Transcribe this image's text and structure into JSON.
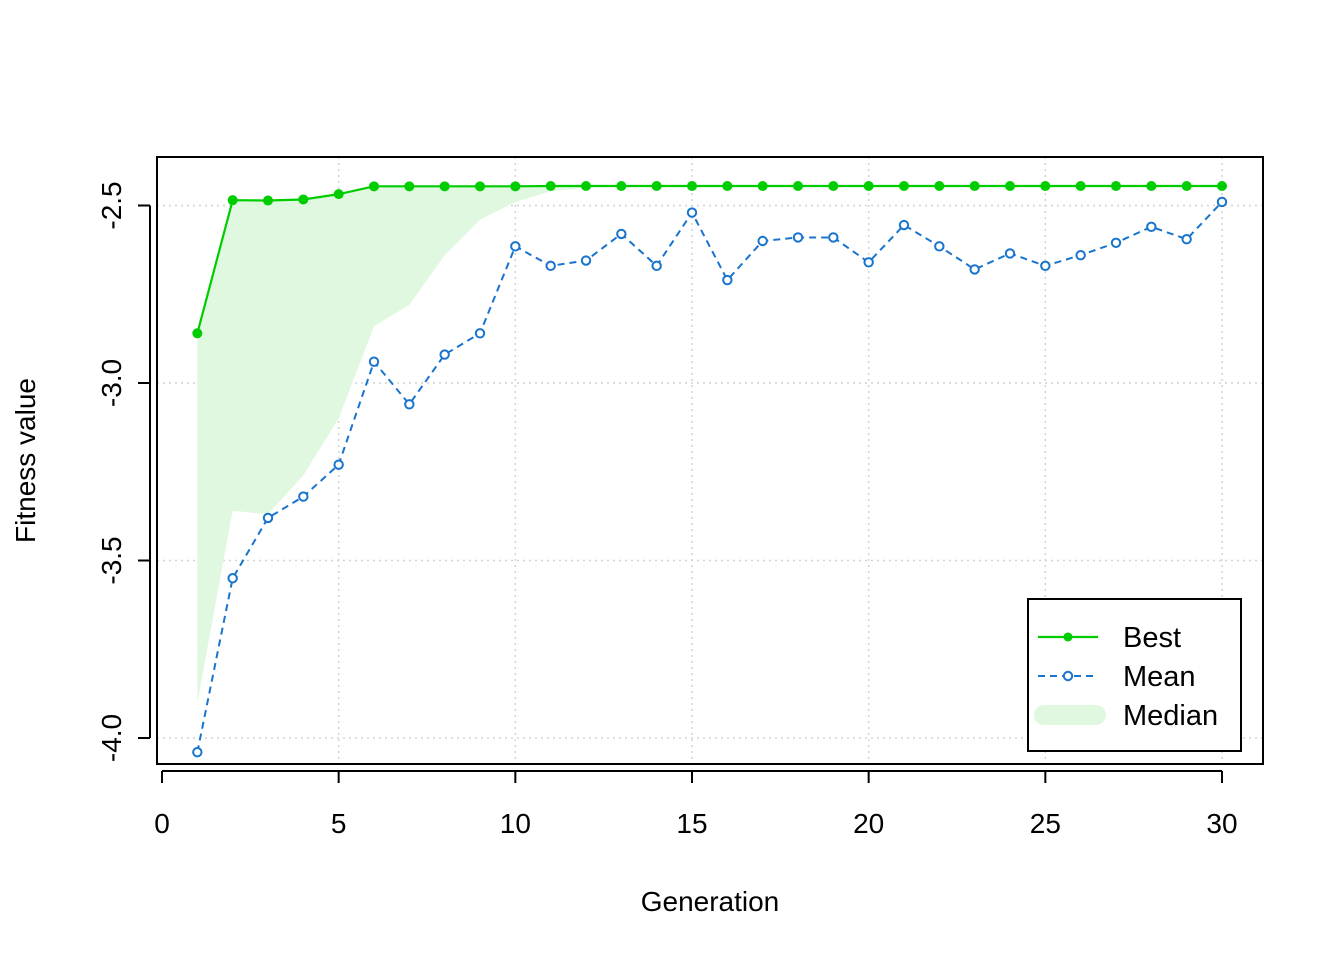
{
  "chart_data": {
    "type": "line",
    "title": "",
    "xlabel": "Generation",
    "ylabel": "Fitness value",
    "xlim": [
      0,
      30
    ],
    "ylim": [
      -4.05,
      -2.35
    ],
    "x_ticks": [
      0,
      5,
      10,
      15,
      20,
      25,
      30
    ],
    "y_ticks": [
      -4.0,
      -3.5,
      -3.0,
      -2.5
    ],
    "x_tick_labels": [
      "0",
      "5",
      "10",
      "15",
      "20",
      "25",
      "30"
    ],
    "y_tick_labels": [
      "-4.0",
      "-3.5",
      "-3.0",
      "-2.5"
    ],
    "grid": true,
    "legend_position": "bottom-right",
    "x": [
      1,
      2,
      3,
      4,
      5,
      6,
      7,
      8,
      9,
      10,
      11,
      12,
      13,
      14,
      15,
      16,
      17,
      18,
      19,
      20,
      21,
      22,
      23,
      24,
      25,
      26,
      27,
      28,
      29,
      30
    ],
    "series": [
      {
        "name": "Best",
        "color": "#00cd00",
        "style": "solid-filled-dots",
        "values": [
          -2.86,
          -2.485,
          -2.486,
          -2.483,
          -2.468,
          -2.446,
          -2.446,
          -2.446,
          -2.446,
          -2.446,
          -2.445,
          -2.445,
          -2.445,
          -2.445,
          -2.445,
          -2.445,
          -2.445,
          -2.445,
          -2.445,
          -2.445,
          -2.445,
          -2.445,
          -2.445,
          -2.445,
          -2.445,
          -2.445,
          -2.445,
          -2.445,
          -2.445,
          -2.445
        ]
      },
      {
        "name": "Mean",
        "color": "#1874cd",
        "style": "dashed-open-circles",
        "values": [
          -4.04,
          -3.55,
          -3.38,
          -3.32,
          -3.23,
          -2.94,
          -3.06,
          -2.92,
          -2.86,
          -2.615,
          -2.67,
          -2.655,
          -2.58,
          -2.67,
          -2.52,
          -2.71,
          -2.6,
          -2.59,
          -2.59,
          -2.66,
          -2.555,
          -2.615,
          -2.68,
          -2.635,
          -2.67,
          -2.64,
          -2.605,
          -2.56,
          -2.595,
          -2.49
        ]
      },
      {
        "name": "Median",
        "color": "#e0f8e0",
        "style": "filled-band",
        "upper_is": "Best",
        "values": [
          -3.9,
          -3.36,
          -3.37,
          -3.26,
          -3.1,
          -2.84,
          -2.78,
          -2.64,
          -2.54,
          -2.49,
          -2.46,
          -2.45,
          -2.445,
          -2.445,
          -2.445,
          -2.445,
          -2.445,
          -2.445,
          -2.445,
          -2.445,
          -2.445,
          -2.445,
          -2.445,
          -2.445,
          -2.445,
          -2.445,
          -2.445,
          -2.445,
          -2.445,
          -2.445
        ]
      }
    ]
  }
}
